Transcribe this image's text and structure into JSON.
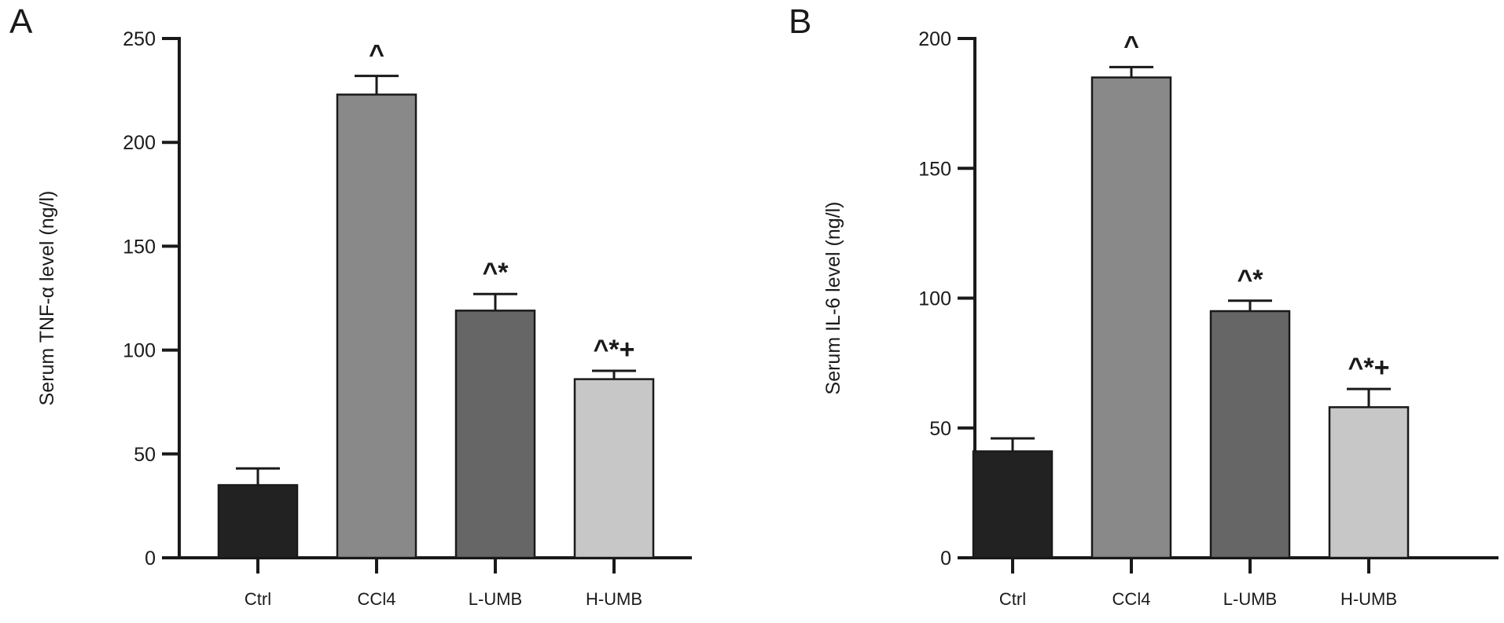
{
  "chart_data": [
    {
      "type": "bar",
      "panel_label": "A",
      "ylabel": "Serum TNF-α level (ng/l)",
      "ylim": [
        0,
        250
      ],
      "yticks": [
        0,
        50,
        100,
        150,
        200,
        250
      ],
      "categories": [
        "Ctrl",
        "CCl4",
        "L-UMB",
        "H-UMB"
      ],
      "values": [
        35,
        223,
        119,
        86
      ],
      "errors": [
        8,
        9,
        8,
        4
      ],
      "bar_colors": [
        "#222222",
        "#898989",
        "#666666",
        "#c7c7c7"
      ],
      "annotations": [
        "",
        "^",
        "^*",
        "^*+"
      ]
    },
    {
      "type": "bar",
      "panel_label": "B",
      "ylabel": "Serum IL-6 level (ng/l)",
      "ylim": [
        0,
        200
      ],
      "yticks": [
        0,
        50,
        100,
        150,
        200
      ],
      "categories": [
        "Ctrl",
        "CCl4",
        "L-UMB",
        "H-UMB"
      ],
      "values": [
        41,
        185,
        95,
        58
      ],
      "errors": [
        5,
        4,
        4,
        7
      ],
      "bar_colors": [
        "#222222",
        "#898989",
        "#666666",
        "#c7c7c7"
      ],
      "annotations": [
        "",
        "^",
        "^*",
        "^*+"
      ]
    }
  ]
}
